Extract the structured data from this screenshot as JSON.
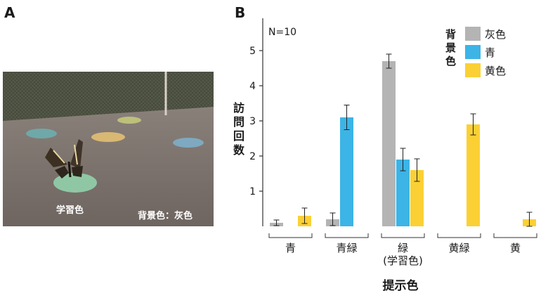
{
  "panels": {
    "a_letter": "A",
    "b_letter": "B"
  },
  "photo": {
    "label_learned": "学習色",
    "label_background": "背景色：灰色"
  },
  "chart_data": {
    "type": "bar",
    "n_label": "N=10",
    "ylabel": "訪問回数",
    "xlabel": "提示色",
    "ylim": [
      0,
      5
    ],
    "yticks": [
      1,
      2,
      3,
      4,
      5
    ],
    "legend_title": "背景色",
    "categories": [
      "青",
      "青緑",
      "緑",
      "黄緑",
      "黄"
    ],
    "category_sublabels": [
      "",
      "",
      "(学習色)",
      "",
      ""
    ],
    "series": [
      {
        "name": "灰色",
        "color": "#b4b4b4",
        "values": [
          0.1,
          0.2,
          4.7,
          0,
          0
        ],
        "errors": [
          0.08,
          0.18,
          0.2,
          0,
          0
        ]
      },
      {
        "name": "青",
        "color": "#3cb4e6",
        "values": [
          0,
          3.1,
          1.9,
          0,
          0
        ],
        "errors": [
          0,
          0.35,
          0.32,
          0,
          0
        ]
      },
      {
        "name": "黄色",
        "color": "#fbd035",
        "values": [
          0.3,
          0,
          1.6,
          2.9,
          0.2
        ],
        "errors": [
          0.22,
          0,
          0.32,
          0.3,
          0.2
        ]
      }
    ]
  }
}
